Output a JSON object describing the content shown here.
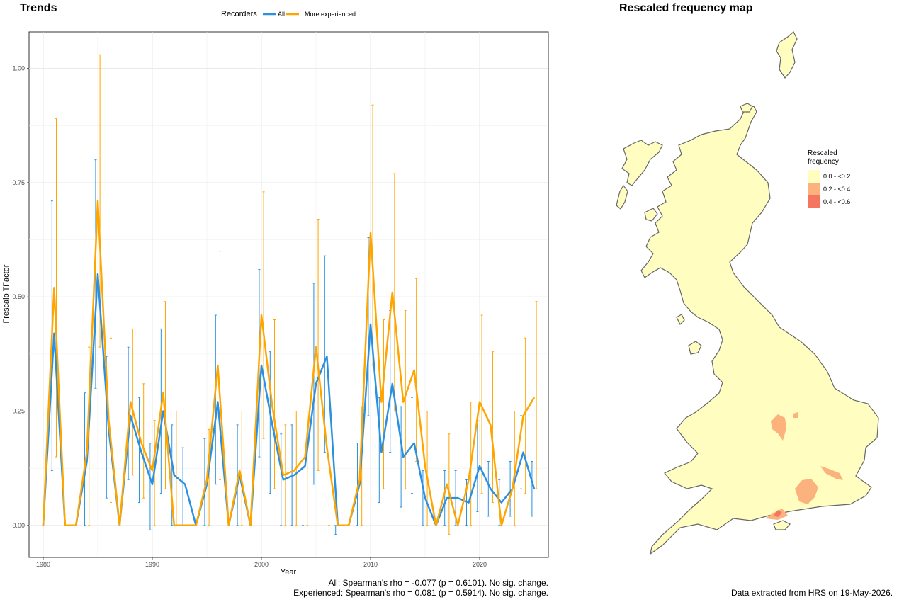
{
  "trends_title": "Trends",
  "map_title": "Rescaled frequency map",
  "legend": {
    "title": "Recorders",
    "items": [
      {
        "label": "All",
        "color": "#2b90e0"
      },
      {
        "label": "More experienced",
        "color": "#ffa500"
      }
    ]
  },
  "stats": {
    "line1": "All: Spearman's rho = -0.077 (p = 0.6101). No sig. change.",
    "line2": "Experienced: Spearman's rho = 0.081 (p = 0.5914). No sig. change."
  },
  "credit": "Data extracted from HRS on 19-May-2026.",
  "map_legend": {
    "title": "Rescaled frequency",
    "items": [
      {
        "label": "0.0 - <0.2",
        "color": "#fffec0"
      },
      {
        "label": "0.2 - <0.4",
        "color": "#fcb27c"
      },
      {
        "label": "0.4 - <0.6",
        "color": "#f57560"
      }
    ]
  },
  "map_colors": {
    "land": "#fffec0",
    "outline": "#666666",
    "mid": "#fcb27c",
    "high": "#f57560"
  },
  "chart_data": {
    "type": "line",
    "xlabel": "Year",
    "ylabel": "Frescalo TFactor",
    "xlim": [
      1978.7,
      2026.3
    ],
    "ylim": [
      -0.07,
      1.08
    ],
    "xticks": [
      1980,
      1990,
      2000,
      2010,
      2020
    ],
    "yticks": [
      0.0,
      0.25,
      0.5,
      0.75,
      1.0
    ],
    "ytick_labels": [
      "0.00",
      "0.25",
      "0.50",
      "0.75",
      "1.00"
    ],
    "grid": true,
    "legend_position": "top",
    "series": [
      {
        "name": "All",
        "color": "#2b90e0",
        "points": [
          {
            "x": 1980,
            "y": 0.0,
            "lo": 0.0,
            "hi": 0.0
          },
          {
            "x": 1981,
            "y": 0.42,
            "lo": 0.12,
            "hi": 0.71
          },
          {
            "x": 1982,
            "y": 0.0,
            "lo": 0.0,
            "hi": 0.0
          },
          {
            "x": 1983,
            "y": 0.0,
            "lo": 0.0,
            "hi": 0.0
          },
          {
            "x": 1984,
            "y": 0.14,
            "lo": 0.0,
            "hi": 0.29
          },
          {
            "x": 1985,
            "y": 0.55,
            "lo": 0.3,
            "hi": 0.8
          },
          {
            "x": 1986,
            "y": 0.21,
            "lo": 0.06,
            "hi": 0.37
          },
          {
            "x": 1987,
            "y": 0.0,
            "lo": 0.0,
            "hi": 0.0
          },
          {
            "x": 1988,
            "y": 0.24,
            "lo": 0.1,
            "hi": 0.39
          },
          {
            "x": 1989,
            "y": 0.16,
            "lo": 0.05,
            "hi": 0.28
          },
          {
            "x": 1990,
            "y": 0.09,
            "lo": -0.01,
            "hi": 0.18
          },
          {
            "x": 1991,
            "y": 0.25,
            "lo": 0.07,
            "hi": 0.43
          },
          {
            "x": 1992,
            "y": 0.11,
            "lo": 0.0,
            "hi": 0.22
          },
          {
            "x": 1993,
            "y": 0.09,
            "lo": 0.0,
            "hi": 0.17
          },
          {
            "x": 1994,
            "y": 0.0,
            "lo": 0.0,
            "hi": 0.0
          },
          {
            "x": 1995,
            "y": 0.09,
            "lo": 0.0,
            "hi": 0.19
          },
          {
            "x": 1996,
            "y": 0.27,
            "lo": 0.09,
            "hi": 0.46
          },
          {
            "x": 1997,
            "y": 0.0,
            "lo": 0.0,
            "hi": 0.0
          },
          {
            "x": 1998,
            "y": 0.11,
            "lo": 0.0,
            "hi": 0.22
          },
          {
            "x": 1999,
            "y": 0.0,
            "lo": 0.0,
            "hi": 0.0
          },
          {
            "x": 2000,
            "y": 0.35,
            "lo": 0.15,
            "hi": 0.56
          },
          {
            "x": 2001,
            "y": 0.22,
            "lo": 0.07,
            "hi": 0.38
          },
          {
            "x": 2002,
            "y": 0.1,
            "lo": 0.0,
            "hi": 0.2
          },
          {
            "x": 2003,
            "y": 0.11,
            "lo": 0.0,
            "hi": 0.22
          },
          {
            "x": 2004,
            "y": 0.13,
            "lo": 0.0,
            "hi": 0.25
          },
          {
            "x": 2005,
            "y": 0.31,
            "lo": 0.09,
            "hi": 0.53
          },
          {
            "x": 2006,
            "y": 0.37,
            "lo": 0.16,
            "hi": 0.59
          },
          {
            "x": 2007,
            "y": 0.0,
            "lo": -0.02,
            "hi": 0.0
          },
          {
            "x": 2008,
            "y": 0.0,
            "lo": 0.0,
            "hi": 0.0
          },
          {
            "x": 2009,
            "y": 0.09,
            "lo": 0.0,
            "hi": 0.18
          },
          {
            "x": 2010,
            "y": 0.44,
            "lo": 0.24,
            "hi": 0.63
          },
          {
            "x": 2011,
            "y": 0.16,
            "lo": 0.05,
            "hi": 0.28
          },
          {
            "x": 2012,
            "y": 0.31,
            "lo": 0.16,
            "hi": 0.47
          },
          {
            "x": 2013,
            "y": 0.15,
            "lo": 0.04,
            "hi": 0.26
          },
          {
            "x": 2014,
            "y": 0.18,
            "lo": 0.07,
            "hi": 0.28
          },
          {
            "x": 2015,
            "y": 0.06,
            "lo": 0.0,
            "hi": 0.12
          },
          {
            "x": 2016,
            "y": 0.0,
            "lo": 0.0,
            "hi": 0.0
          },
          {
            "x": 2017,
            "y": 0.06,
            "lo": 0.0,
            "hi": 0.12
          },
          {
            "x": 2018,
            "y": 0.06,
            "lo": 0.0,
            "hi": 0.12
          },
          {
            "x": 2019,
            "y": 0.05,
            "lo": 0.0,
            "hi": 0.1
          },
          {
            "x": 2020,
            "y": 0.13,
            "lo": 0.03,
            "hi": 0.23
          },
          {
            "x": 2021,
            "y": 0.08,
            "lo": 0.02,
            "hi": 0.14
          },
          {
            "x": 2022,
            "y": 0.05,
            "lo": 0.0,
            "hi": 0.1
          },
          {
            "x": 2023,
            "y": 0.08,
            "lo": 0.02,
            "hi": 0.14
          },
          {
            "x": 2024,
            "y": 0.16,
            "lo": 0.08,
            "hi": 0.24
          },
          {
            "x": 2025,
            "y": 0.08,
            "lo": 0.02,
            "hi": 0.14
          }
        ]
      },
      {
        "name": "More experienced",
        "color": "#ffa500",
        "points": [
          {
            "x": 1980,
            "y": 0.0,
            "lo": 0.0,
            "hi": 0.0
          },
          {
            "x": 1981,
            "y": 0.52,
            "lo": 0.15,
            "hi": 0.89
          },
          {
            "x": 1982,
            "y": 0.0,
            "lo": 0.0,
            "hi": 0.0
          },
          {
            "x": 1983,
            "y": 0.0,
            "lo": 0.0,
            "hi": 0.0
          },
          {
            "x": 1984,
            "y": 0.16,
            "lo": 0.0,
            "hi": 0.39
          },
          {
            "x": 1985,
            "y": 0.71,
            "lo": 0.39,
            "hi": 1.03
          },
          {
            "x": 1986,
            "y": 0.23,
            "lo": 0.05,
            "hi": 0.41
          },
          {
            "x": 1987,
            "y": 0.0,
            "lo": 0.0,
            "hi": 0.0
          },
          {
            "x": 1988,
            "y": 0.27,
            "lo": 0.11,
            "hi": 0.43
          },
          {
            "x": 1989,
            "y": 0.18,
            "lo": 0.06,
            "hi": 0.31
          },
          {
            "x": 1990,
            "y": 0.12,
            "lo": 0.0,
            "hi": 0.23
          },
          {
            "x": 1991,
            "y": 0.29,
            "lo": 0.08,
            "hi": 0.49
          },
          {
            "x": 1992,
            "y": 0.0,
            "lo": 0.0,
            "hi": 0.25
          },
          {
            "x": 1993,
            "y": 0.0,
            "lo": 0.0,
            "hi": 0.0
          },
          {
            "x": 1994,
            "y": 0.0,
            "lo": 0.0,
            "hi": 0.0
          },
          {
            "x": 1995,
            "y": 0.1,
            "lo": 0.0,
            "hi": 0.21
          },
          {
            "x": 1996,
            "y": 0.35,
            "lo": 0.1,
            "hi": 0.6
          },
          {
            "x": 1997,
            "y": 0.0,
            "lo": 0.0,
            "hi": 0.0
          },
          {
            "x": 1998,
            "y": 0.12,
            "lo": 0.0,
            "hi": 0.25
          },
          {
            "x": 1999,
            "y": 0.0,
            "lo": 0.0,
            "hi": 0.0
          },
          {
            "x": 2000,
            "y": 0.46,
            "lo": 0.19,
            "hi": 0.73
          },
          {
            "x": 2001,
            "y": 0.26,
            "lo": 0.08,
            "hi": 0.45
          },
          {
            "x": 2002,
            "y": 0.11,
            "lo": 0.0,
            "hi": 0.22
          },
          {
            "x": 2003,
            "y": 0.12,
            "lo": 0.0,
            "hi": 0.25
          },
          {
            "x": 2004,
            "y": 0.15,
            "lo": 0.0,
            "hi": 0.25
          },
          {
            "x": 2005,
            "y": 0.39,
            "lo": 0.12,
            "hi": 0.67
          },
          {
            "x": 2006,
            "y": 0.17,
            "lo": 0.0,
            "hi": 0.34
          },
          {
            "x": 2007,
            "y": 0.0,
            "lo": 0.0,
            "hi": 0.0
          },
          {
            "x": 2008,
            "y": 0.0,
            "lo": 0.0,
            "hi": 0.0
          },
          {
            "x": 2009,
            "y": 0.1,
            "lo": 0.0,
            "hi": 0.26
          },
          {
            "x": 2010,
            "y": 0.64,
            "lo": 0.35,
            "hi": 0.92
          },
          {
            "x": 2011,
            "y": 0.27,
            "lo": 0.08,
            "hi": 0.45
          },
          {
            "x": 2012,
            "y": 0.51,
            "lo": 0.25,
            "hi": 0.77
          },
          {
            "x": 2013,
            "y": 0.27,
            "lo": 0.08,
            "hi": 0.47
          },
          {
            "x": 2014,
            "y": 0.34,
            "lo": 0.14,
            "hi": 0.54
          },
          {
            "x": 2015,
            "y": 0.13,
            "lo": 0.0,
            "hi": 0.25
          },
          {
            "x": 2016,
            "y": 0.0,
            "lo": 0.0,
            "hi": 0.0
          },
          {
            "x": 2017,
            "y": 0.09,
            "lo": -0.02,
            "hi": 0.2
          },
          {
            "x": 2018,
            "y": 0.0,
            "lo": 0.0,
            "hi": 0.0
          },
          {
            "x": 2019,
            "y": 0.1,
            "lo": 0.0,
            "hi": 0.27
          },
          {
            "x": 2020,
            "y": 0.27,
            "lo": 0.07,
            "hi": 0.46
          },
          {
            "x": 2021,
            "y": 0.22,
            "lo": 0.05,
            "hi": 0.38
          },
          {
            "x": 2022,
            "y": 0.0,
            "lo": 0.0,
            "hi": 0.0
          },
          {
            "x": 2023,
            "y": 0.08,
            "lo": 0.0,
            "hi": 0.25
          },
          {
            "x": 2024,
            "y": 0.24,
            "lo": 0.07,
            "hi": 0.41
          },
          {
            "x": 2025,
            "y": 0.28,
            "lo": 0.08,
            "hi": 0.49
          }
        ]
      }
    ]
  }
}
